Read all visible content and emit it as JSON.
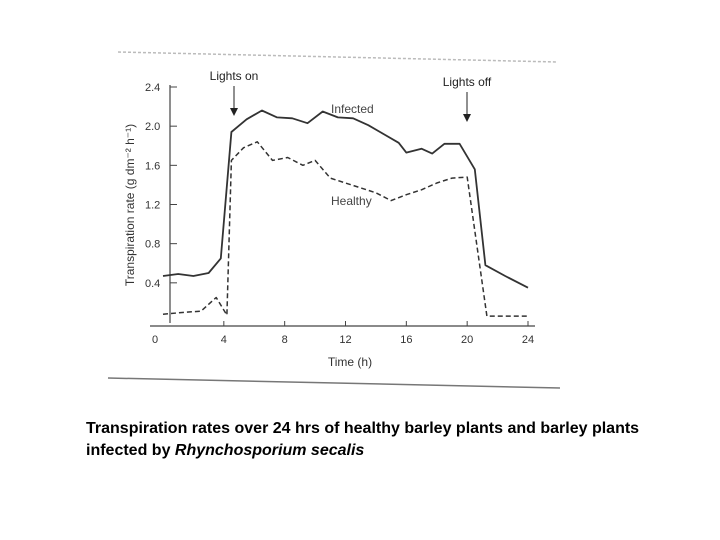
{
  "chart_data": {
    "type": "line",
    "ylabel": "Transpiration rate (g dm⁻² h⁻¹)",
    "xlabel": "Time (h)",
    "xlim": [
      0,
      24
    ],
    "ylim": [
      0,
      2.4
    ],
    "x_ticks": [
      "0",
      "4",
      "8",
      "12",
      "16",
      "20",
      "24"
    ],
    "y_ticks": [
      "0.4",
      "0.8",
      "1.2",
      "1.6",
      "2.0",
      "2.4"
    ],
    "grid": false,
    "series": [
      {
        "name": "Infected",
        "style": "solid",
        "points": [
          [
            0,
            0.47
          ],
          [
            1,
            0.49
          ],
          [
            2,
            0.47
          ],
          [
            3,
            0.5
          ],
          [
            3.8,
            0.65
          ],
          [
            4.5,
            1.94
          ],
          [
            5.5,
            2.07
          ],
          [
            6.5,
            2.16
          ],
          [
            7.5,
            2.09
          ],
          [
            8.5,
            2.08
          ],
          [
            9.5,
            2.03
          ],
          [
            10.5,
            2.15
          ],
          [
            11.5,
            2.09
          ],
          [
            12.5,
            2.08
          ],
          [
            13.5,
            2.01
          ],
          [
            14.5,
            1.92
          ],
          [
            15.5,
            1.83
          ],
          [
            16,
            1.73
          ],
          [
            17,
            1.77
          ],
          [
            17.7,
            1.72
          ],
          [
            18.5,
            1.82
          ],
          [
            19.5,
            1.82
          ],
          [
            20.5,
            1.56
          ],
          [
            21.2,
            0.58
          ],
          [
            22.5,
            0.47
          ],
          [
            24,
            0.35
          ]
        ]
      },
      {
        "name": "Healthy",
        "style": "dashed",
        "points": [
          [
            0,
            0.08
          ],
          [
            1.5,
            0.1
          ],
          [
            2.5,
            0.11
          ],
          [
            3.5,
            0.25
          ],
          [
            4.2,
            0.07
          ],
          [
            4.5,
            1.65
          ],
          [
            5.3,
            1.78
          ],
          [
            6.2,
            1.84
          ],
          [
            7.2,
            1.65
          ],
          [
            8.2,
            1.68
          ],
          [
            9.2,
            1.6
          ],
          [
            10,
            1.65
          ],
          [
            11,
            1.47
          ],
          [
            12,
            1.42
          ],
          [
            13,
            1.37
          ],
          [
            14,
            1.32
          ],
          [
            15,
            1.24
          ],
          [
            16,
            1.3
          ],
          [
            17,
            1.35
          ],
          [
            18,
            1.42
          ],
          [
            19,
            1.47
          ],
          [
            20,
            1.48
          ],
          [
            21.3,
            0.06
          ],
          [
            24,
            0.06
          ]
        ]
      }
    ],
    "annotations": [
      {
        "text": "Lights on",
        "x": 4.5
      },
      {
        "text": "Lights off",
        "x": 20
      }
    ]
  },
  "caption": {
    "text": "Transpiration rates over 24 hrs of healthy barley plants and barley plants infected by ",
    "species": "Rhynchosporium secalis"
  }
}
